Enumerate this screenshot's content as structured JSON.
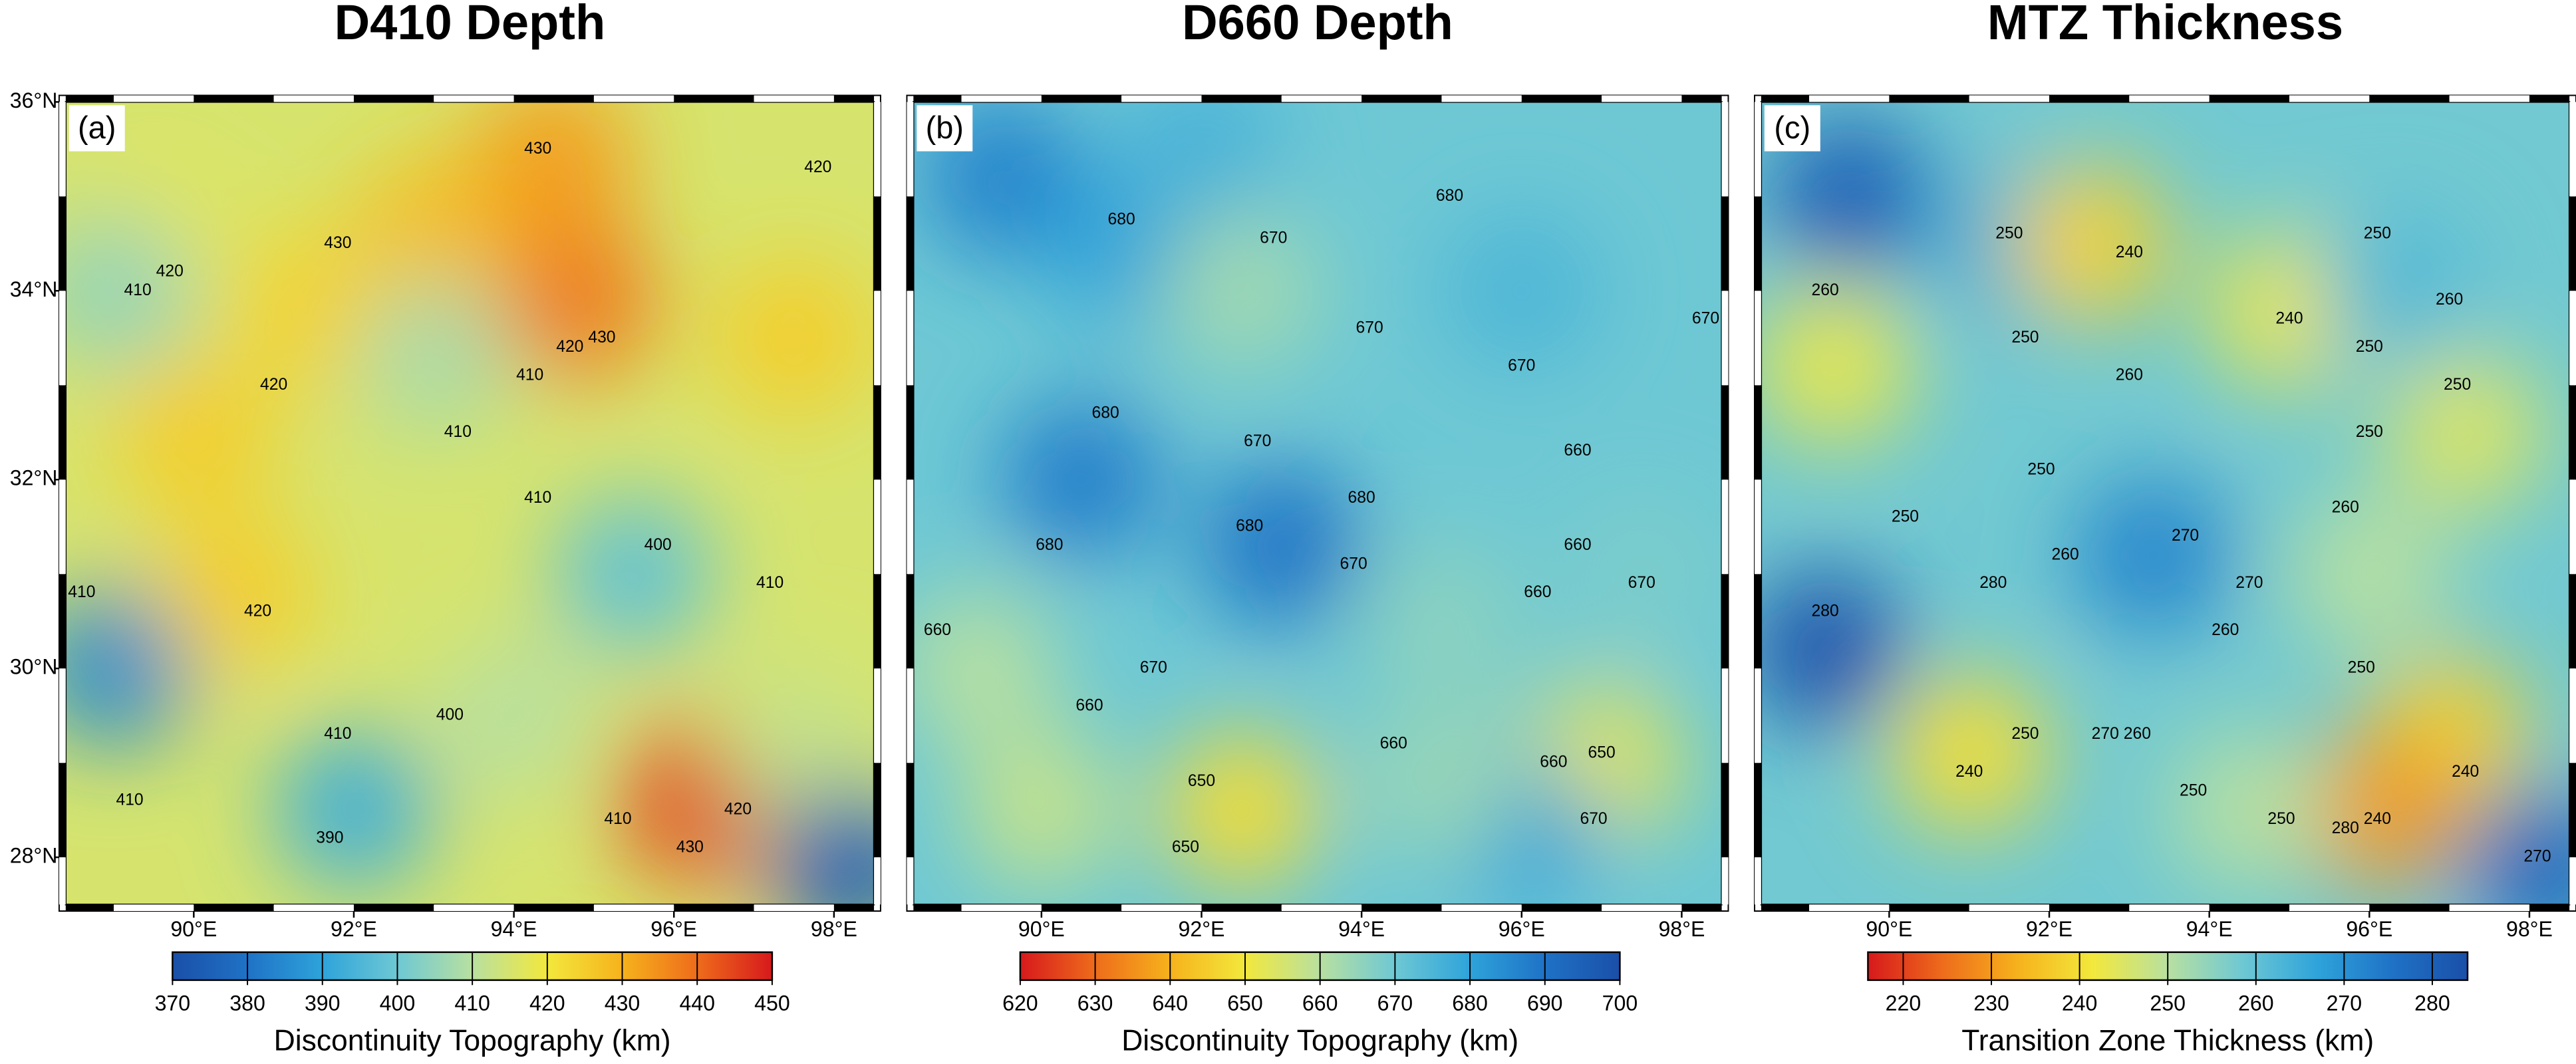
{
  "colormap": [
    "#1a4fa8",
    "#1f72c6",
    "#2ea3da",
    "#6ec8d4",
    "#b8e0a0",
    "#f3e83c",
    "#f6b21c",
    "#ee6c1b",
    "#d7191c"
  ],
  "chart_data": [
    {
      "type": "map",
      "title": "D410 Depth",
      "panel_label": "(a)",
      "reverse": false,
      "xlim": [
        88.4,
        98.5
      ],
      "ylim": [
        27.5,
        36
      ],
      "xticks": [
        {
          "value": 90,
          "label": "90°E"
        },
        {
          "value": 92,
          "label": "92°E"
        },
        {
          "value": 94,
          "label": "94°E"
        },
        {
          "value": 96,
          "label": "96°E"
        },
        {
          "value": 98,
          "label": "98°E"
        }
      ],
      "yticks": [
        {
          "value": 28,
          "label": "28°N"
        },
        {
          "value": 30,
          "label": "30°N"
        },
        {
          "value": 32,
          "label": "32°N"
        },
        {
          "value": 34,
          "label": "34°N"
        },
        {
          "value": 36,
          "label": "36°N"
        }
      ],
      "field": [
        [
          93,
          33,
          415
        ],
        [
          90,
          32.5,
          425
        ],
        [
          89.5,
          34.5,
          418
        ],
        [
          93,
          34.6,
          428
        ],
        [
          94.5,
          35.4,
          433
        ],
        [
          94.8,
          33.9,
          438
        ],
        [
          91.5,
          33.8,
          424
        ],
        [
          97.5,
          33.5,
          425
        ],
        [
          93,
          33.3,
          408
        ],
        [
          95.5,
          31,
          398
        ],
        [
          89,
          30,
          385
        ],
        [
          92,
          28.5,
          393
        ],
        [
          94,
          29.5,
          410
        ],
        [
          96.3,
          28.6,
          445
        ],
        [
          97.5,
          29.2,
          412
        ],
        [
          98.2,
          27.9,
          375
        ],
        [
          90.5,
          30.8,
          425
        ],
        [
          89,
          34,
          405
        ]
      ],
      "contour_labels": [
        {
          "lon": 94.3,
          "lat": 35.5,
          "value": 430
        },
        {
          "lon": 91.8,
          "lat": 34.5,
          "value": 430
        },
        {
          "lon": 89.7,
          "lat": 34.2,
          "value": 420
        },
        {
          "lon": 89.3,
          "lat": 34,
          "value": 410
        },
        {
          "lon": 97.8,
          "lat": 35.3,
          "value": 420
        },
        {
          "lon": 94.7,
          "lat": 33.4,
          "value": 420
        },
        {
          "lon": 95.1,
          "lat": 33.5,
          "value": 430
        },
        {
          "lon": 94.2,
          "lat": 33.1,
          "value": 410
        },
        {
          "lon": 93.3,
          "lat": 32.5,
          "value": 410
        },
        {
          "lon": 91,
          "lat": 33,
          "value": 420
        },
        {
          "lon": 88.6,
          "lat": 30.8,
          "value": 410
        },
        {
          "lon": 90.8,
          "lat": 30.6,
          "value": 420
        },
        {
          "lon": 94.3,
          "lat": 31.8,
          "value": 410
        },
        {
          "lon": 95.8,
          "lat": 31.3,
          "value": 400
        },
        {
          "lon": 97.2,
          "lat": 30.9,
          "value": 410
        },
        {
          "lon": 93.2,
          "lat": 29.5,
          "value": 400
        },
        {
          "lon": 91.8,
          "lat": 29.3,
          "value": 410
        },
        {
          "lon": 91.7,
          "lat": 28.2,
          "value": 390
        },
        {
          "lon": 95.3,
          "lat": 28.4,
          "value": 410
        },
        {
          "lon": 96.2,
          "lat": 28.1,
          "value": 430
        },
        {
          "lon": 96.8,
          "lat": 28.5,
          "value": 420
        },
        {
          "lon": 89.2,
          "lat": 28.6,
          "value": 410
        }
      ],
      "colorbar": {
        "label": "Discontinuity Topography (km)",
        "lim": [
          370,
          450
        ],
        "ticks": [
          370,
          380,
          390,
          400,
          410,
          420,
          430,
          440,
          450
        ]
      }
    },
    {
      "type": "map",
      "title": "D660 Depth",
      "panel_label": "(b)",
      "reverse": true,
      "xlim": [
        88.4,
        98.5
      ],
      "ylim": [
        27.5,
        36
      ],
      "xticks": [
        {
          "value": 90,
          "label": "90°E"
        },
        {
          "value": 92,
          "label": "92°E"
        },
        {
          "value": 94,
          "label": "94°E"
        },
        {
          "value": 96,
          "label": "96°E"
        },
        {
          "value": 98,
          "label": "98°E"
        }
      ],
      "field": [
        [
          93,
          32,
          670
        ],
        [
          89.5,
          35.2,
          687
        ],
        [
          91,
          34.5,
          680
        ],
        [
          92,
          35.5,
          676
        ],
        [
          90.5,
          32,
          688
        ],
        [
          93,
          31.3,
          690
        ],
        [
          96,
          34,
          675
        ],
        [
          92.5,
          34,
          663
        ],
        [
          97.5,
          31,
          668
        ],
        [
          89.2,
          30,
          660
        ],
        [
          92.5,
          28.5,
          648
        ],
        [
          97,
          29,
          652
        ],
        [
          96,
          28.3,
          680
        ],
        [
          90,
          28.5,
          658
        ],
        [
          95,
          30.5,
          666
        ],
        [
          95,
          28.8,
          664
        ]
      ],
      "contour_labels": [
        {
          "lon": 91,
          "lat": 34.75,
          "value": 680
        },
        {
          "lon": 92.9,
          "lat": 34.55,
          "value": 670
        },
        {
          "lon": 94.1,
          "lat": 33.6,
          "value": 670
        },
        {
          "lon": 95.1,
          "lat": 35,
          "value": 680
        },
        {
          "lon": 98.3,
          "lat": 33.7,
          "value": 670
        },
        {
          "lon": 96,
          "lat": 33.2,
          "value": 670
        },
        {
          "lon": 90.8,
          "lat": 32.7,
          "value": 680
        },
        {
          "lon": 92.7,
          "lat": 32.4,
          "value": 670
        },
        {
          "lon": 96.7,
          "lat": 32.3,
          "value": 660
        },
        {
          "lon": 96.7,
          "lat": 31.3,
          "value": 660
        },
        {
          "lon": 97.5,
          "lat": 30.9,
          "value": 670
        },
        {
          "lon": 90.1,
          "lat": 31.3,
          "value": 680
        },
        {
          "lon": 92.6,
          "lat": 31.5,
          "value": 680
        },
        {
          "lon": 94,
          "lat": 31.8,
          "value": 680
        },
        {
          "lon": 93.9,
          "lat": 31.1,
          "value": 670
        },
        {
          "lon": 96.2,
          "lat": 30.8,
          "value": 660
        },
        {
          "lon": 91.4,
          "lat": 30,
          "value": 670
        },
        {
          "lon": 90.6,
          "lat": 29.6,
          "value": 660
        },
        {
          "lon": 94.4,
          "lat": 29.2,
          "value": 660
        },
        {
          "lon": 92,
          "lat": 28.8,
          "value": 650
        },
        {
          "lon": 91.8,
          "lat": 28.1,
          "value": 650
        },
        {
          "lon": 96.4,
          "lat": 29,
          "value": 660
        },
        {
          "lon": 97,
          "lat": 29.1,
          "value": 650
        },
        {
          "lon": 96.9,
          "lat": 28.4,
          "value": 670
        },
        {
          "lon": 88.7,
          "lat": 30.4,
          "value": 660
        }
      ],
      "colorbar": {
        "label": "Discontinuity Topography (km)",
        "lim": [
          620,
          700
        ],
        "ticks": [
          620,
          630,
          640,
          650,
          660,
          670,
          680,
          690,
          700
        ]
      }
    },
    {
      "type": "map",
      "title": "MTZ Thickness",
      "panel_label": "(c)",
      "reverse": true,
      "xlim": [
        88.4,
        98.5
      ],
      "ylim": [
        27.5,
        36
      ],
      "xticks": [
        {
          "value": 90,
          "label": "90°E"
        },
        {
          "value": 92,
          "label": "92°E"
        },
        {
          "value": 94,
          "label": "94°E"
        },
        {
          "value": 96,
          "label": "96°E"
        },
        {
          "value": 98,
          "label": "98°E"
        }
      ],
      "field": [
        [
          93,
          32,
          258
        ],
        [
          89.5,
          35,
          280
        ],
        [
          89.2,
          30.2,
          283
        ],
        [
          91.5,
          34.5,
          265
        ],
        [
          92.5,
          34.5,
          238
        ],
        [
          95,
          33.8,
          242
        ],
        [
          97.2,
          32.5,
          245
        ],
        [
          93.3,
          31.2,
          272
        ],
        [
          91,
          29.1,
          240
        ],
        [
          97,
          29.3,
          238
        ],
        [
          96.2,
          28.5,
          230
        ],
        [
          98.2,
          27.9,
          278
        ],
        [
          89.3,
          33.2,
          243
        ],
        [
          96,
          31,
          250
        ],
        [
          94.5,
          28.5,
          250
        ],
        [
          96.3,
          34,
          262
        ]
      ],
      "contour_labels": [
        {
          "lon": 91.5,
          "lat": 34.6,
          "value": 250
        },
        {
          "lon": 93,
          "lat": 34.4,
          "value": 240
        },
        {
          "lon": 89.2,
          "lat": 34,
          "value": 260
        },
        {
          "lon": 91.7,
          "lat": 33.5,
          "value": 250
        },
        {
          "lon": 93,
          "lat": 33.1,
          "value": 260
        },
        {
          "lon": 95,
          "lat": 33.7,
          "value": 240
        },
        {
          "lon": 96,
          "lat": 33.4,
          "value": 250
        },
        {
          "lon": 96.1,
          "lat": 34.6,
          "value": 250
        },
        {
          "lon": 97,
          "lat": 33.9,
          "value": 260
        },
        {
          "lon": 97.1,
          "lat": 33,
          "value": 250
        },
        {
          "lon": 96,
          "lat": 32.5,
          "value": 250
        },
        {
          "lon": 95.7,
          "lat": 31.7,
          "value": 260
        },
        {
          "lon": 91.9,
          "lat": 32.1,
          "value": 250
        },
        {
          "lon": 90.2,
          "lat": 31.6,
          "value": 250
        },
        {
          "lon": 91.3,
          "lat": 30.9,
          "value": 280
        },
        {
          "lon": 93.7,
          "lat": 31.4,
          "value": 270
        },
        {
          "lon": 92.2,
          "lat": 31.2,
          "value": 260
        },
        {
          "lon": 94.5,
          "lat": 30.9,
          "value": 270
        },
        {
          "lon": 89.2,
          "lat": 30.6,
          "value": 280
        },
        {
          "lon": 94.2,
          "lat": 30.4,
          "value": 260
        },
        {
          "lon": 95.9,
          "lat": 30,
          "value": 250
        },
        {
          "lon": 92.7,
          "lat": 29.3,
          "value": 270
        },
        {
          "lon": 93.1,
          "lat": 29.3,
          "value": 260
        },
        {
          "lon": 91.7,
          "lat": 29.3,
          "value": 250
        },
        {
          "lon": 91,
          "lat": 28.9,
          "value": 240
        },
        {
          "lon": 97.2,
          "lat": 28.9,
          "value": 240
        },
        {
          "lon": 93.8,
          "lat": 28.7,
          "value": 250
        },
        {
          "lon": 94.9,
          "lat": 28.4,
          "value": 250
        },
        {
          "lon": 96.1,
          "lat": 28.4,
          "value": 240
        },
        {
          "lon": 95.7,
          "lat": 28.3,
          "value": 280
        },
        {
          "lon": 98.1,
          "lat": 28,
          "value": 270
        }
      ],
      "colorbar": {
        "label": "Transition Zone Thickness (km)",
        "lim": [
          216,
          284
        ],
        "ticks": [
          220,
          230,
          240,
          250,
          260,
          270,
          280
        ]
      }
    }
  ]
}
